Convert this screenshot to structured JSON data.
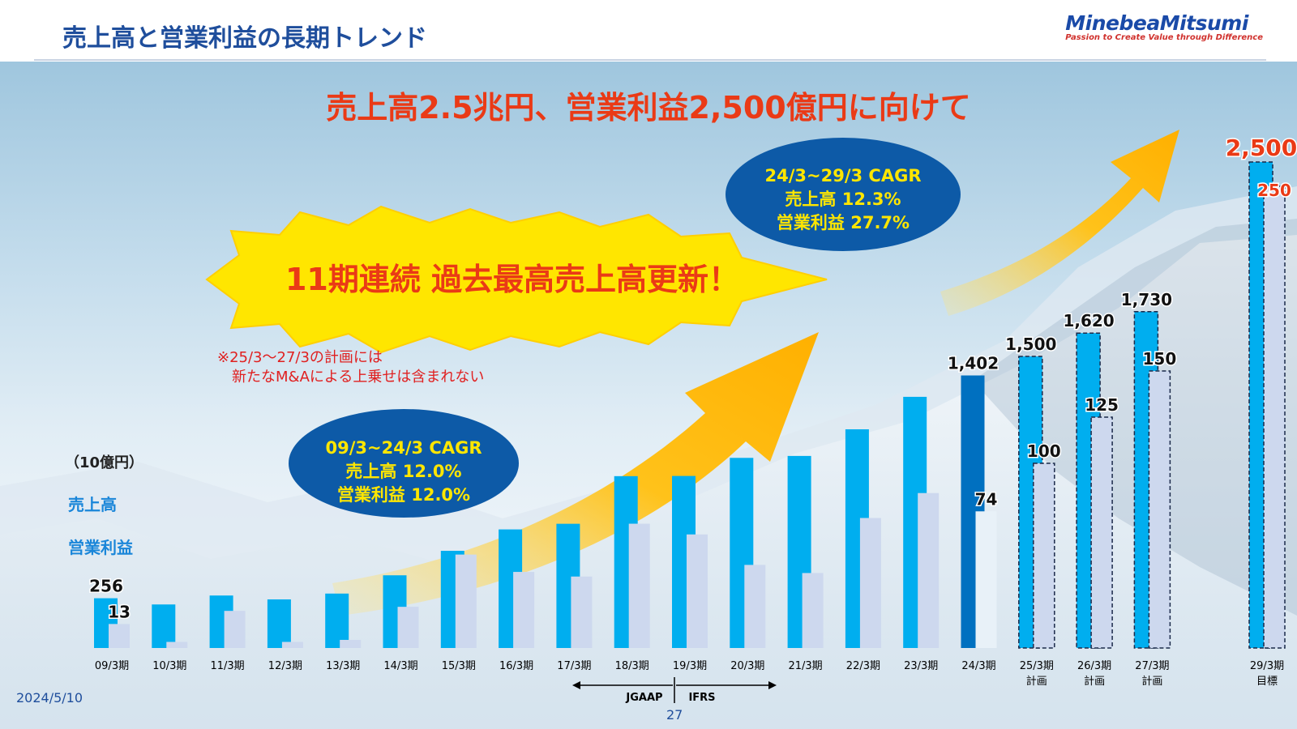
{
  "header": {
    "title": "売上高と営業利益の長期トレンド",
    "logo_main": "MinebeaMitsumi",
    "logo_tagline": "Passion to Create Value through Difference"
  },
  "headline": "売上高2.5兆円、営業利益2,500億円に向けて",
  "burst_text": "11期連続 過去最高売上高更新！",
  "note_lines": [
    "※25/3〜27/3の計画には",
    "新たなM&Aによる上乗せは含まれない"
  ],
  "unit_label": "（10億円）",
  "legend": {
    "sales": "売上高",
    "op": "営業利益"
  },
  "cagr_past": {
    "line1": "09/3~24/3 CAGR",
    "line2": "売上高 12.0%",
    "line3": "営業利益 12.0%"
  },
  "cagr_future": {
    "line1": "24/3~29/3 CAGR",
    "line2": "売上高 12.3%",
    "line3": "営業利益 27.7%"
  },
  "accounting": {
    "left": "JGAAP",
    "right": "IFRS"
  },
  "footer": {
    "date": "2024/5/10",
    "page": "27"
  },
  "colors": {
    "sales": "#00aeef",
    "sales_actual_latest": "#0070c0",
    "op": "#cdd8ee",
    "headline": "#ea3a16",
    "cagr_fill": "#0d5aa7",
    "cagr_text": "#ffe600",
    "burst_fill": "#ffe600",
    "burst_text": "#ea3a16",
    "arrow": "#ffb800"
  },
  "chart_data": {
    "type": "bar",
    "categories": [
      "09/3期",
      "10/3期",
      "11/3期",
      "12/3期",
      "13/3期",
      "14/3期",
      "15/3期",
      "16/3期",
      "17/3期",
      "18/3期",
      "19/3期",
      "20/3期",
      "21/3期",
      "22/3期",
      "23/3期",
      "24/3期",
      "25/3期",
      "26/3期",
      "27/3期",
      "29/3期"
    ],
    "category_sublabels": [
      "",
      "",
      "",
      "",
      "",
      "",
      "",
      "",
      "",
      "",
      "",
      "",
      "",
      "",
      "",
      "",
      "計画",
      "計画",
      "計画",
      "目標"
    ],
    "series": [
      {
        "name": "売上高",
        "values": [
          256,
          224,
          270,
          250,
          280,
          374,
          500,
          610,
          639,
          884,
          885,
          978,
          988,
          1125,
          1292,
          1402,
          1500,
          1620,
          1730,
          2500
        ]
      },
      {
        "name": "営業利益",
        "values": [
          13,
          3.3,
          20.1,
          3.3,
          4.4,
          22.3,
          50.6,
          41.2,
          38.7,
          67.3,
          61.5,
          45.0,
          40.6,
          70.4,
          83.9,
          74,
          100,
          125,
          150,
          250
        ]
      }
    ],
    "plan_categories": [
      "25/3期",
      "26/3期",
      "27/3期",
      "29/3期"
    ],
    "data_labels": {
      "sales": {
        "0": "256",
        "15": "1,402",
        "16": "1,500",
        "17": "1,620",
        "18": "1,730",
        "19": "2,500"
      },
      "op": {
        "0": "13",
        "15": "74",
        "16": "100",
        "17": "125",
        "18": "150",
        "19": "250"
      }
    },
    "y_sales_range": [
      0,
      2500
    ],
    "y_op_range": [
      0,
      250
    ],
    "grid": false
  }
}
